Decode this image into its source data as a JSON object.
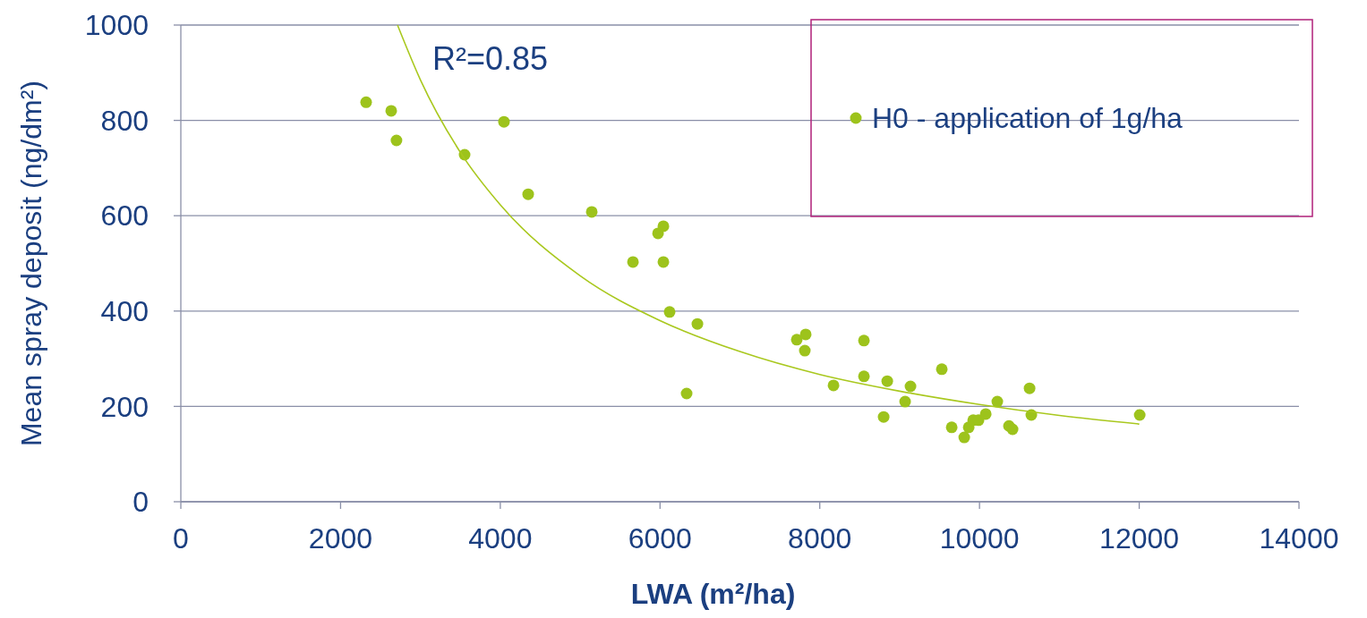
{
  "chart_data": {
    "type": "scatter",
    "xlabel": "LWA (m²/ha)",
    "ylabel": "Mean spray deposit (ng/dm²)",
    "xlim": [
      0,
      14000
    ],
    "xticks": [
      0,
      2000,
      4000,
      6000,
      8000,
      10000,
      12000,
      14000
    ],
    "ylim": [
      0,
      1000
    ],
    "yticks": [
      0,
      200,
      400,
      600,
      800,
      1000
    ],
    "grid": "y",
    "legend": "top right",
    "marker": "circle",
    "annotations": [
      "R²=0.85"
    ],
    "series": [
      {
        "name": "H0 - application of 1g/ha",
        "color": "#9dc31c",
        "x": [
          2320,
          2634,
          2700,
          3553,
          4046,
          4349,
          5145,
          5661,
          5975,
          6042,
          6042,
          6120,
          6468,
          6333,
          7712,
          7824,
          7813,
          8172,
          8553,
          8553,
          8800,
          8845,
          9069,
          9136,
          9528,
          9652,
          9809,
          9865,
          9921,
          9988,
          10078,
          10223,
          10369,
          10414,
          10627,
          10649,
          12006
        ],
        "values": [
          838,
          820,
          758,
          728,
          797,
          645,
          608,
          503,
          563,
          578,
          503,
          398,
          373,
          227,
          340,
          351,
          317,
          244,
          338,
          263,
          178,
          253,
          210,
          242,
          278,
          156,
          135,
          156,
          171,
          171,
          184,
          210,
          159,
          152,
          238,
          182,
          182
        ]
      },
      {
        "type": "line",
        "color": "#a9c81e",
        "marker": "none",
        "x": [
          2713,
          3000,
          3500,
          4000,
          5000,
          6000,
          7000,
          8000,
          9000,
          10000,
          11000,
          12000
        ],
        "values": [
          1000,
          885,
          733,
          623,
          474,
          380,
          315,
          267,
          232,
          204,
          181,
          163
        ]
      }
    ]
  }
}
